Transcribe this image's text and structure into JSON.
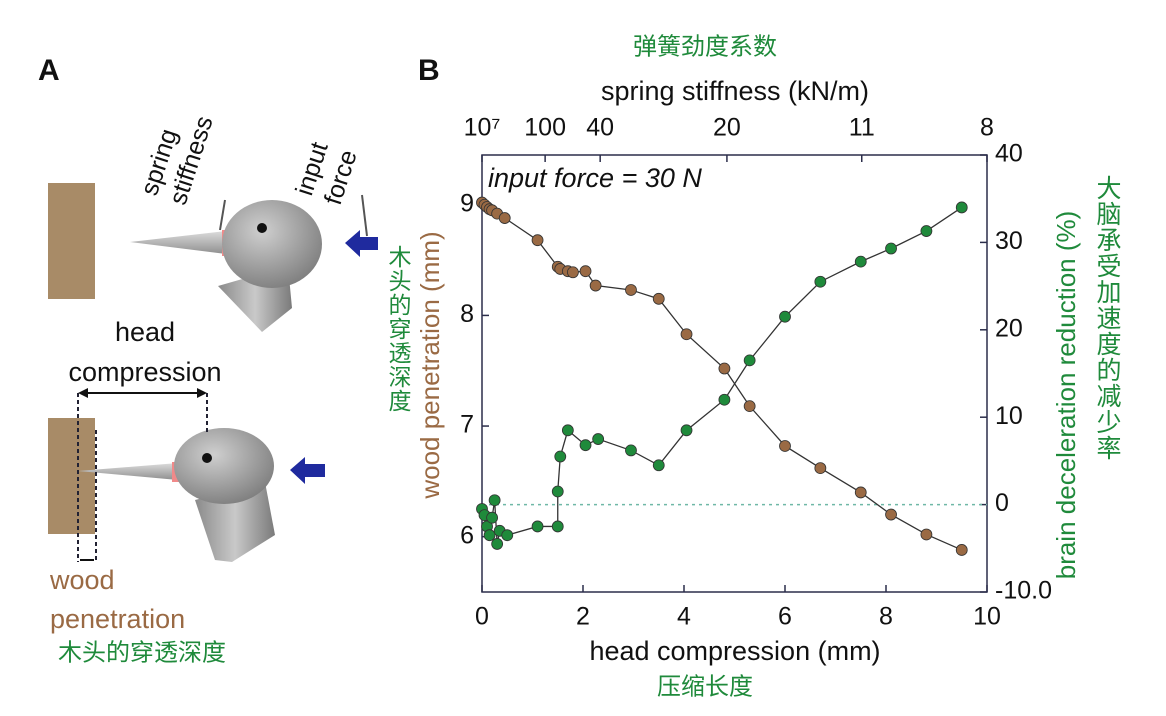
{
  "panel_a": {
    "label": "A",
    "spring_label": [
      "spring",
      "stiffness"
    ],
    "force_label": [
      "input",
      "force"
    ],
    "compression_label": [
      "head",
      "compression"
    ],
    "penetration_label": [
      "wood",
      "penetration"
    ],
    "penetration_cn": "木头的穿透深度"
  },
  "chart_data": {
    "type": "line",
    "panel_label": "B",
    "annotation": "input force = 30 N",
    "xlabel": "head compression (mm)",
    "xlabel_cn": "压缩长度",
    "x2label": "spring stiffness (kN/m)",
    "x2label_cn": "弹簧劲度系数",
    "ylabel": "wood penetration (mm)",
    "ylabel_cn": "木头的穿透深度",
    "y2label": "brain deceleration reduction (%)",
    "y2label_cn": "大脑承受加速度的减少率",
    "xlim": [
      0,
      10
    ],
    "xticks": [
      0,
      2,
      4,
      6,
      8,
      10
    ],
    "x2ticks": [
      {
        "value": 0,
        "label": "10⁷"
      },
      {
        "value": 1.25,
        "label": "100"
      },
      {
        "value": 2.34,
        "label": "40"
      },
      {
        "value": 4.85,
        "label": "20"
      },
      {
        "value": 7.52,
        "label": "11"
      },
      {
        "value": 10,
        "label": "8"
      }
    ],
    "ylim": [
      5.5,
      9.45
    ],
    "yticks": [
      6,
      7,
      8,
      9
    ],
    "y2lim": [
      -10,
      40
    ],
    "y2ticks": [
      {
        "value": -10,
        "label": "-10.0"
      },
      0,
      10,
      20,
      30,
      40
    ],
    "reference_line": 0,
    "series": [
      {
        "color": "#9a6a44",
        "x": [
          0,
          0.05,
          0.1,
          0.15,
          0.2,
          0.3,
          0.45,
          1.1,
          1.5,
          1.55,
          1.7,
          1.8,
          2.05,
          2.25,
          2.95,
          3.5,
          4.05,
          4.8,
          5.3,
          6.0,
          6.7,
          7.5,
          8.1,
          8.8,
          9.5
        ],
        "values": [
          9.02,
          9.0,
          8.98,
          8.96,
          8.95,
          8.92,
          8.88,
          8.68,
          8.44,
          8.42,
          8.4,
          8.39,
          8.4,
          8.27,
          8.23,
          8.15,
          7.83,
          7.52,
          7.18,
          6.82,
          6.62,
          6.4,
          6.2,
          6.02,
          5.88
        ]
      },
      {
        "color": "#1f8a3b",
        "axis": "y2",
        "x": [
          0,
          0.05,
          0.1,
          0.15,
          0.2,
          0.25,
          0.3,
          0.35,
          0.5,
          1.1,
          1.5,
          1.5,
          1.55,
          1.7,
          2.05,
          2.3,
          2.95,
          3.5,
          4.05,
          4.8,
          5.3,
          6.0,
          6.7,
          7.5,
          8.1,
          8.8,
          9.5
        ],
        "values": [
          -0.5,
          -1.2,
          -2.5,
          -3.5,
          -1.5,
          0.5,
          -4.5,
          -3,
          -3.5,
          -2.5,
          -2.5,
          1.5,
          5.5,
          8.5,
          6.8,
          7.5,
          6.2,
          4.5,
          8.5,
          12.0,
          16.5,
          21.5,
          25.5,
          27.8,
          29.3,
          31.3,
          34.0
        ]
      }
    ]
  }
}
